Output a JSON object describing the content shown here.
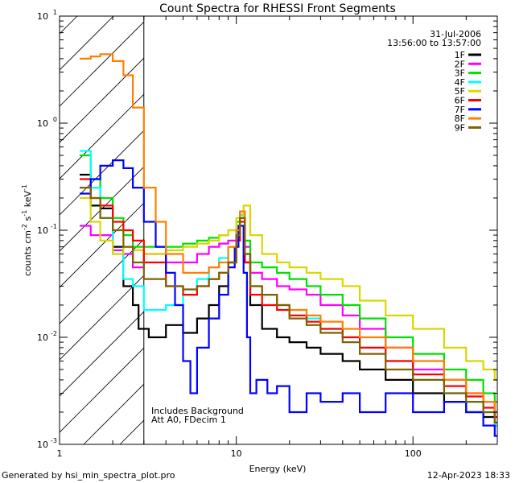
{
  "chart_data": {
    "type": "line",
    "title": "Count Spectra for RHESSI Front Segments",
    "xlabel": "Energy (keV)",
    "ylabel_parts": {
      "base": "counts cm",
      "exp1": "-2",
      "mid1": " s",
      "exp2": "-1",
      "mid2": " keV",
      "exp3": "-1"
    },
    "xscale": "log",
    "yscale": "log",
    "xlim": [
      1,
      300
    ],
    "ylim": [
      0.001,
      10
    ],
    "xticks": [
      {
        "v": 1,
        "label": "1"
      },
      {
        "v": 10,
        "label": "10"
      },
      {
        "v": 100,
        "label": "100"
      }
    ],
    "yticks": [
      {
        "v": 10,
        "base": "10",
        "exp": "1"
      },
      {
        "v": 1,
        "base": "10",
        "exp": "0"
      },
      {
        "v": 0.1,
        "base": "10",
        "exp": "-1"
      },
      {
        "v": 0.01,
        "base": "10",
        "exp": "-2"
      },
      {
        "v": 0.001,
        "base": "10",
        "exp": "-3"
      }
    ],
    "hatch_region": {
      "xmin": 1,
      "xmax": 3
    },
    "date": "31-Jul-2006",
    "time_range": "13:56:00 to 13:57:00",
    "annotations": [
      "Includes Background",
      "Att A0, FDecim 1"
    ],
    "series": [
      {
        "name": "1F",
        "color": "#000000",
        "points": [
          [
            1.3,
            0.33
          ],
          [
            1.5,
            0.17
          ],
          [
            1.7,
            0.16
          ],
          [
            2.0,
            0.07
          ],
          [
            2.3,
            0.03
          ],
          [
            2.6,
            0.02
          ],
          [
            2.8,
            0.012
          ],
          [
            3.2,
            0.01
          ],
          [
            4,
            0.013
          ],
          [
            5,
            0.011
          ],
          [
            6,
            0.015
          ],
          [
            7,
            0.02
          ],
          [
            8,
            0.03
          ],
          [
            9,
            0.05
          ],
          [
            10,
            0.09
          ],
          [
            10.5,
            0.13
          ],
          [
            11.2,
            0.05
          ],
          [
            12,
            0.02
          ],
          [
            14,
            0.012
          ],
          [
            17,
            0.01
          ],
          [
            20,
            0.009
          ],
          [
            25,
            0.008
          ],
          [
            30,
            0.007
          ],
          [
            40,
            0.006
          ],
          [
            50,
            0.005
          ],
          [
            70,
            0.004
          ],
          [
            100,
            0.003
          ],
          [
            150,
            0.0025
          ],
          [
            200,
            0.002
          ],
          [
            250,
            0.0018
          ],
          [
            290,
            0.0015
          ]
        ]
      },
      {
        "name": "2F",
        "color": "#ff00ff",
        "points": [
          [
            1.3,
            0.11
          ],
          [
            1.5,
            0.09
          ],
          [
            1.7,
            0.09
          ],
          [
            2.0,
            0.065
          ],
          [
            2.3,
            0.06
          ],
          [
            2.6,
            0.045
          ],
          [
            3.0,
            0.06
          ],
          [
            4,
            0.05
          ],
          [
            5,
            0.05
          ],
          [
            6,
            0.06
          ],
          [
            7,
            0.07
          ],
          [
            8,
            0.075
          ],
          [
            9,
            0.08
          ],
          [
            10,
            0.1
          ],
          [
            10.5,
            0.14
          ],
          [
            11.2,
            0.07
          ],
          [
            12,
            0.04
          ],
          [
            14,
            0.035
          ],
          [
            17,
            0.03
          ],
          [
            20,
            0.028
          ],
          [
            25,
            0.025
          ],
          [
            30,
            0.02
          ],
          [
            40,
            0.016
          ],
          [
            50,
            0.012
          ],
          [
            70,
            0.008
          ],
          [
            100,
            0.005
          ],
          [
            150,
            0.004
          ],
          [
            200,
            0.003
          ],
          [
            250,
            0.0025
          ],
          [
            290,
            0.002
          ]
        ]
      },
      {
        "name": "3F",
        "color": "#00e000",
        "points": [
          [
            1.3,
            0.5
          ],
          [
            1.5,
            0.3
          ],
          [
            1.7,
            0.2
          ],
          [
            2.0,
            0.13
          ],
          [
            2.3,
            0.09
          ],
          [
            2.6,
            0.07
          ],
          [
            3.0,
            0.07
          ],
          [
            4,
            0.07
          ],
          [
            5,
            0.075
          ],
          [
            6,
            0.08
          ],
          [
            7,
            0.085
          ],
          [
            8,
            0.09
          ],
          [
            9,
            0.1
          ],
          [
            10,
            0.12
          ],
          [
            10.5,
            0.15
          ],
          [
            11.2,
            0.08
          ],
          [
            12,
            0.05
          ],
          [
            14,
            0.045
          ],
          [
            17,
            0.04
          ],
          [
            20,
            0.035
          ],
          [
            25,
            0.03
          ],
          [
            30,
            0.025
          ],
          [
            40,
            0.02
          ],
          [
            50,
            0.015
          ],
          [
            70,
            0.01
          ],
          [
            100,
            0.007
          ],
          [
            150,
            0.005
          ],
          [
            200,
            0.004
          ],
          [
            250,
            0.003
          ],
          [
            290,
            0.0025
          ]
        ]
      },
      {
        "name": "4F",
        "color": "#00ffff",
        "points": [
          [
            1.3,
            0.55
          ],
          [
            1.5,
            0.25
          ],
          [
            1.7,
            0.13
          ],
          [
            2.0,
            0.06
          ],
          [
            2.3,
            0.035
          ],
          [
            2.6,
            0.03
          ],
          [
            3.0,
            0.018
          ],
          [
            4,
            0.02
          ],
          [
            5,
            0.025
          ],
          [
            6,
            0.035
          ],
          [
            7,
            0.045
          ],
          [
            8,
            0.055
          ],
          [
            9,
            0.07
          ],
          [
            10,
            0.1
          ],
          [
            10.5,
            0.14
          ],
          [
            11.2,
            0.06
          ],
          [
            12,
            0.03
          ],
          [
            14,
            0.025
          ],
          [
            17,
            0.02
          ],
          [
            20,
            0.018
          ],
          [
            25,
            0.015
          ],
          [
            30,
            0.012
          ],
          [
            40,
            0.01
          ],
          [
            50,
            0.008
          ],
          [
            70,
            0.006
          ],
          [
            100,
            0.004
          ],
          [
            150,
            0.003
          ],
          [
            200,
            0.0025
          ],
          [
            250,
            0.002
          ],
          [
            290,
            0.0015
          ]
        ]
      },
      {
        "name": "5F",
        "color": "#d8d800",
        "points": [
          [
            1.3,
            0.2
          ],
          [
            1.5,
            0.12
          ],
          [
            1.7,
            0.08
          ],
          [
            2.0,
            0.06
          ],
          [
            2.3,
            0.07
          ],
          [
            2.6,
            0.065
          ],
          [
            3.0,
            0.06
          ],
          [
            4,
            0.065
          ],
          [
            5,
            0.07
          ],
          [
            6,
            0.075
          ],
          [
            7,
            0.08
          ],
          [
            8,
            0.09
          ],
          [
            9,
            0.1
          ],
          [
            10,
            0.13
          ],
          [
            11,
            0.17
          ],
          [
            12,
            0.09
          ],
          [
            14,
            0.06
          ],
          [
            17,
            0.05
          ],
          [
            20,
            0.045
          ],
          [
            25,
            0.04
          ],
          [
            30,
            0.035
          ],
          [
            40,
            0.03
          ],
          [
            50,
            0.022
          ],
          [
            70,
            0.016
          ],
          [
            100,
            0.012
          ],
          [
            150,
            0.008
          ],
          [
            200,
            0.006
          ],
          [
            250,
            0.005
          ],
          [
            290,
            0.004
          ]
        ]
      },
      {
        "name": "6F",
        "color": "#ff0000",
        "points": [
          [
            1.3,
            0.3
          ],
          [
            1.5,
            0.2
          ],
          [
            1.7,
            0.17
          ],
          [
            2.0,
            0.12
          ],
          [
            2.3,
            0.1
          ],
          [
            2.6,
            0.08
          ],
          [
            3.0,
            0.05
          ],
          [
            4,
            0.03
          ],
          [
            5,
            0.025
          ],
          [
            6,
            0.03
          ],
          [
            7,
            0.035
          ],
          [
            8,
            0.04
          ],
          [
            9,
            0.05
          ],
          [
            10,
            0.08
          ],
          [
            10.5,
            0.12
          ],
          [
            11.2,
            0.05
          ],
          [
            12,
            0.025
          ],
          [
            14,
            0.02
          ],
          [
            17,
            0.018
          ],
          [
            20,
            0.016
          ],
          [
            25,
            0.014
          ],
          [
            30,
            0.012
          ],
          [
            40,
            0.01
          ],
          [
            50,
            0.008
          ],
          [
            70,
            0.006
          ],
          [
            100,
            0.0045
          ],
          [
            150,
            0.0035
          ],
          [
            200,
            0.0028
          ],
          [
            250,
            0.0022
          ],
          [
            290,
            0.0018
          ]
        ]
      },
      {
        "name": "7F",
        "color": "#0000ff",
        "points": [
          [
            1.3,
            0.22
          ],
          [
            1.5,
            0.3
          ],
          [
            1.7,
            0.4
          ],
          [
            2.0,
            0.45
          ],
          [
            2.3,
            0.38
          ],
          [
            2.6,
            0.25
          ],
          [
            3.0,
            0.12
          ],
          [
            3.5,
            0.07
          ],
          [
            4,
            0.04
          ],
          [
            4.5,
            0.02
          ],
          [
            5,
            0.006
          ],
          [
            5.5,
            0.003
          ],
          [
            6,
            0.008
          ],
          [
            7,
            0.015
          ],
          [
            8,
            0.025
          ],
          [
            9,
            0.045
          ],
          [
            9.8,
            0.07
          ],
          [
            10.3,
            0.11
          ],
          [
            11,
            0.04
          ],
          [
            11.5,
            0.01
          ],
          [
            12,
            0.003
          ],
          [
            13,
            0.004
          ],
          [
            15,
            0.003
          ],
          [
            17,
            0.0035
          ],
          [
            20,
            0.002
          ],
          [
            25,
            0.003
          ],
          [
            30,
            0.0025
          ],
          [
            40,
            0.003
          ],
          [
            50,
            0.002
          ],
          [
            70,
            0.003
          ],
          [
            100,
            0.002
          ],
          [
            150,
            0.0025
          ],
          [
            200,
            0.002
          ],
          [
            250,
            0.0015
          ],
          [
            290,
            0.0012
          ]
        ]
      },
      {
        "name": "8F",
        "color": "#ff8000",
        "points": [
          [
            1.3,
            4.0
          ],
          [
            1.5,
            4.2
          ],
          [
            1.7,
            4.4
          ],
          [
            2.0,
            3.8
          ],
          [
            2.3,
            2.8
          ],
          [
            2.6,
            1.4
          ],
          [
            3.0,
            0.25
          ],
          [
            3.5,
            0.12
          ],
          [
            4,
            0.06
          ],
          [
            5,
            0.04
          ],
          [
            6,
            0.04
          ],
          [
            7,
            0.045
          ],
          [
            8,
            0.05
          ],
          [
            9,
            0.07
          ],
          [
            10,
            0.1
          ],
          [
            10.5,
            0.15
          ],
          [
            11.2,
            0.06
          ],
          [
            12,
            0.03
          ],
          [
            14,
            0.025
          ],
          [
            17,
            0.02
          ],
          [
            20,
            0.018
          ],
          [
            25,
            0.016
          ],
          [
            30,
            0.014
          ],
          [
            40,
            0.012
          ],
          [
            50,
            0.01
          ],
          [
            70,
            0.008
          ],
          [
            100,
            0.006
          ],
          [
            150,
            0.004
          ],
          [
            200,
            0.003
          ],
          [
            250,
            0.0025
          ],
          [
            290,
            0.002
          ]
        ]
      },
      {
        "name": "9F",
        "color": "#806000",
        "points": [
          [
            1.3,
            0.25
          ],
          [
            1.5,
            0.2
          ],
          [
            1.7,
            0.13
          ],
          [
            2.0,
            0.1
          ],
          [
            2.3,
            0.07
          ],
          [
            2.6,
            0.05
          ],
          [
            3.0,
            0.035
          ],
          [
            4,
            0.03
          ],
          [
            5,
            0.028
          ],
          [
            6,
            0.03
          ],
          [
            7,
            0.035
          ],
          [
            8,
            0.04
          ],
          [
            9,
            0.05
          ],
          [
            10,
            0.09
          ],
          [
            10.5,
            0.13
          ],
          [
            11.2,
            0.06
          ],
          [
            12,
            0.03
          ],
          [
            14,
            0.025
          ],
          [
            17,
            0.02
          ],
          [
            20,
            0.015
          ],
          [
            25,
            0.013
          ],
          [
            30,
            0.011
          ],
          [
            40,
            0.009
          ],
          [
            50,
            0.007
          ],
          [
            70,
            0.005
          ],
          [
            100,
            0.004
          ],
          [
            150,
            0.003
          ],
          [
            200,
            0.0025
          ],
          [
            250,
            0.002
          ],
          [
            290,
            0.0016
          ]
        ]
      }
    ]
  },
  "footer": {
    "left": "Generated by hsi_min_spectra_plot.pro",
    "right": "12-Apr-2023 18:33"
  }
}
